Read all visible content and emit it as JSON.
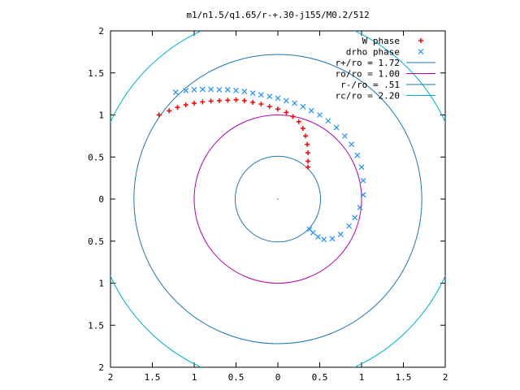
{
  "chart_data": {
    "type": "scatter",
    "title": "m1/n1.5/q1.65/r-+.30-j155/M0.2/512",
    "xlabel": "",
    "ylabel": "",
    "xlim": [
      -2,
      2
    ],
    "ylim": [
      -2,
      2
    ],
    "x_ticks": [
      -2,
      -1.5,
      -1,
      -0.5,
      0,
      0.5,
      1,
      1.5,
      2
    ],
    "y_ticks": [
      -2,
      -1.5,
      -1,
      -0.5,
      0,
      0.5,
      1,
      1.5,
      2
    ],
    "x_tick_labels": [
      "2",
      "1.5",
      "1",
      "0.5",
      "0",
      "0.5",
      "1",
      "1.5",
      "2"
    ],
    "y_tick_labels": [
      "2",
      "1.5",
      "1",
      "0.5",
      "0",
      "0.5",
      "1",
      "1.5",
      "2"
    ],
    "grid": false,
    "legend_position": "top-right",
    "series": [
      {
        "name": "W phase",
        "kind": "points",
        "marker": "plus",
        "color": "#ff0000",
        "points": [
          [
            -1.42,
            1.0
          ],
          [
            -1.3,
            1.05
          ],
          [
            -1.2,
            1.09
          ],
          [
            -1.1,
            1.12
          ],
          [
            -1.0,
            1.14
          ],
          [
            -0.9,
            1.155
          ],
          [
            -0.8,
            1.165
          ],
          [
            -0.7,
            1.17
          ],
          [
            -0.6,
            1.175
          ],
          [
            -0.5,
            1.18
          ],
          [
            -0.4,
            1.17
          ],
          [
            -0.3,
            1.15
          ],
          [
            -0.2,
            1.13
          ],
          [
            -0.1,
            1.1
          ],
          [
            0.0,
            1.07
          ],
          [
            0.1,
            1.03
          ],
          [
            0.18,
            0.98
          ],
          [
            0.25,
            0.92
          ],
          [
            0.3,
            0.84
          ],
          [
            0.33,
            0.75
          ],
          [
            0.35,
            0.65
          ],
          [
            0.36,
            0.55
          ],
          [
            0.36,
            0.45
          ],
          [
            0.36,
            0.38
          ]
        ]
      },
      {
        "name": "drho phase",
        "kind": "points",
        "marker": "cross",
        "color": "#1e90ff",
        "points": [
          [
            -1.22,
            1.27
          ],
          [
            -1.1,
            1.29
          ],
          [
            -1.0,
            1.3
          ],
          [
            -0.9,
            1.305
          ],
          [
            -0.8,
            1.305
          ],
          [
            -0.7,
            1.3
          ],
          [
            -0.6,
            1.3
          ],
          [
            -0.5,
            1.29
          ],
          [
            -0.4,
            1.28
          ],
          [
            -0.3,
            1.26
          ],
          [
            -0.2,
            1.24
          ],
          [
            -0.1,
            1.22
          ],
          [
            0.0,
            1.2
          ],
          [
            0.1,
            1.17
          ],
          [
            0.2,
            1.14
          ],
          [
            0.3,
            1.1
          ],
          [
            0.4,
            1.05
          ],
          [
            0.5,
            1.0
          ],
          [
            0.6,
            0.93
          ],
          [
            0.7,
            0.85
          ],
          [
            0.8,
            0.75
          ],
          [
            0.88,
            0.65
          ],
          [
            0.95,
            0.52
          ],
          [
            1.0,
            0.38
          ],
          [
            1.02,
            0.22
          ],
          [
            1.02,
            0.05
          ],
          [
            0.98,
            -0.1
          ],
          [
            0.92,
            -0.22
          ],
          [
            0.85,
            -0.32
          ],
          [
            0.75,
            -0.42
          ],
          [
            0.65,
            -0.47
          ],
          [
            0.55,
            -0.48
          ],
          [
            0.48,
            -0.45
          ],
          [
            0.42,
            -0.4
          ],
          [
            0.38,
            -0.36
          ]
        ]
      },
      {
        "name": "r+/ro = 1.72",
        "kind": "circle",
        "radius": 1.72,
        "color": "#1f77b4"
      },
      {
        "name": "ro/ro = 1.00",
        "kind": "circle",
        "radius": 1.0,
        "color": "#b000b0"
      },
      {
        "name": "r-/ro = .51",
        "kind": "circle",
        "radius": 0.51,
        "color": "#1f77b4"
      },
      {
        "name": "rc/ro = 2.20",
        "kind": "circle",
        "radius": 2.2,
        "color": "#00b0d0"
      }
    ]
  }
}
